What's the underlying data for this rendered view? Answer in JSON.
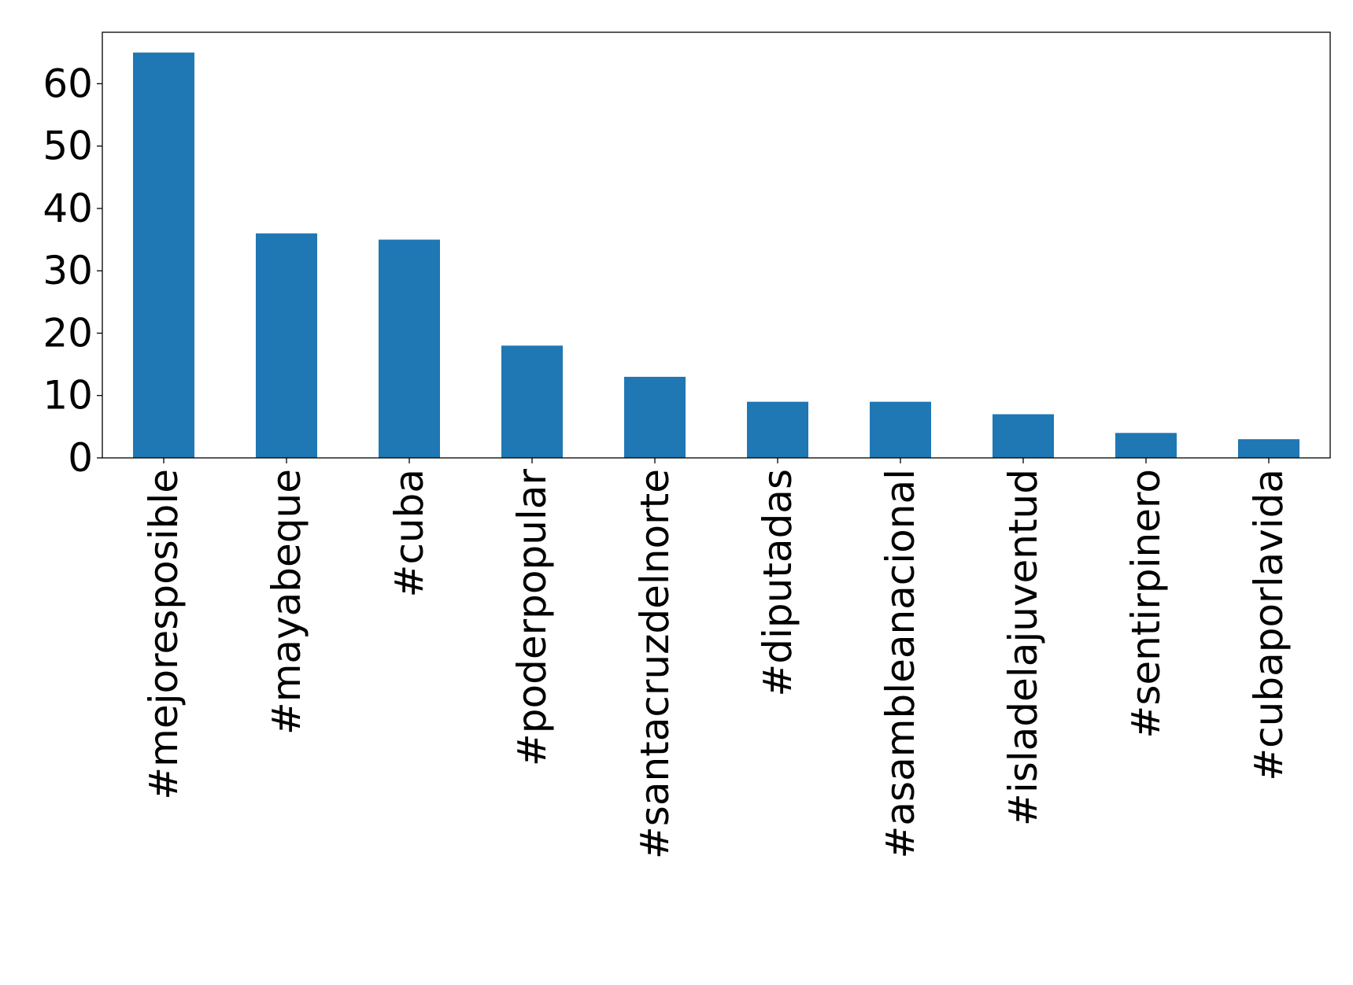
{
  "chart_data": {
    "type": "bar",
    "title": "",
    "xlabel": "",
    "ylabel": "",
    "categories": [
      "#mejoresposible",
      "#mayabeque",
      "#cuba",
      "#poderpopular",
      "#santacruzdelnorte",
      "#diputadas",
      "#asambleanacional",
      "#isladelajuventud",
      "#sentirpinero",
      "#cubaporlavida"
    ],
    "values": [
      65,
      36,
      35,
      18,
      13,
      9,
      9,
      7,
      4,
      3
    ],
    "ylim": [
      0,
      68.25
    ],
    "yticks": [
      "0",
      "10",
      "20",
      "30",
      "40",
      "50",
      "60"
    ],
    "grid": false,
    "legend": "none",
    "colors": {
      "bar": "#1f77b4",
      "axis": "#000000",
      "background": "#ffffff"
    }
  }
}
